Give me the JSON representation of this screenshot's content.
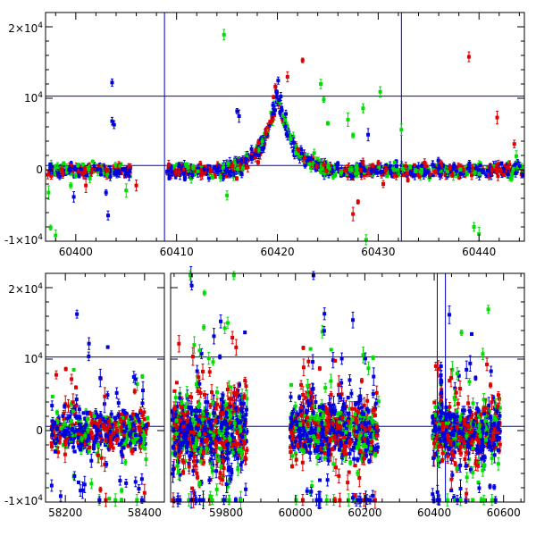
{
  "chart_data": [
    {
      "type": "scatter",
      "panel": "top",
      "title": "",
      "xlabel": "",
      "ylabel": "",
      "xlim": [
        60397,
        60444.5
      ],
      "ylim": [
        -10000,
        22000
      ],
      "x_ticks": [
        60400,
        60410,
        60420,
        60430,
        60440
      ],
      "x_tick_labels": [
        "60400",
        "60410",
        "60420",
        "60430",
        "60440"
      ],
      "y_ticks": [
        -10000,
        0,
        10000,
        20000
      ],
      "y_tick_labels": [
        {
          "mant": "-1×10",
          "exp": "4"
        },
        {
          "mant": "0",
          "exp": ""
        },
        {
          "mant": "10",
          "exp": "4"
        },
        {
          "mant": "2×10",
          "exp": "4"
        }
      ],
      "hlines": [
        10300,
        600
      ],
      "vlines": [
        60408.8,
        60432.3
      ],
      "line_color": "#0000cc",
      "series_colors": {
        "red": "#dd0000",
        "green": "#00dd00",
        "blue": "#0000dd"
      },
      "baseline_segments": [
        {
          "x0": 60397.2,
          "x1": 60405.5
        },
        {
          "x0": 60409.0,
          "x1": 60416.5
        },
        {
          "x0": 60424.5,
          "x1": 60444.5
        }
      ],
      "peak": {
        "x_center": 60420.0,
        "x_start": 60414.0,
        "x_end": 60425.5,
        "height": 11000,
        "width": 1.4
      },
      "outliers": [
        {
          "x": 60403.6,
          "y": 12200,
          "c": "blue"
        },
        {
          "x": 60403.6,
          "y": 6800,
          "c": "blue"
        },
        {
          "x": 60403.8,
          "y": 6300,
          "c": "blue"
        },
        {
          "x": 60403.0,
          "y": -3200,
          "c": "blue"
        },
        {
          "x": 60403.2,
          "y": -6400,
          "c": "blue"
        },
        {
          "x": 60397.3,
          "y": -3200,
          "c": "green"
        },
        {
          "x": 60397.5,
          "y": -8100,
          "c": "green"
        },
        {
          "x": 60398.0,
          "y": -9200,
          "c": "green"
        },
        {
          "x": 60399.5,
          "y": -2200,
          "c": "green"
        },
        {
          "x": 60399.8,
          "y": -3800,
          "c": "blue"
        },
        {
          "x": 60401.0,
          "y": -2200,
          "c": "red"
        },
        {
          "x": 60406.0,
          "y": -2200,
          "c": "red"
        },
        {
          "x": 60405.0,
          "y": -2900,
          "c": "green"
        },
        {
          "x": 60414.7,
          "y": 18900,
          "c": "green"
        },
        {
          "x": 60415.0,
          "y": -3600,
          "c": "green"
        },
        {
          "x": 60416.0,
          "y": 8200,
          "c": "blue"
        },
        {
          "x": 60416.2,
          "y": 7500,
          "c": "blue"
        },
        {
          "x": 60421.0,
          "y": 13000,
          "c": "red"
        },
        {
          "x": 60422.5,
          "y": 15300,
          "c": "red"
        },
        {
          "x": 60424.3,
          "y": 12000,
          "c": "green"
        },
        {
          "x": 60424.6,
          "y": 9800,
          "c": "green"
        },
        {
          "x": 60425.0,
          "y": 6500,
          "c": "green"
        },
        {
          "x": 60427.0,
          "y": 7000,
          "c": "green"
        },
        {
          "x": 60427.5,
          "y": 4800,
          "c": "green"
        },
        {
          "x": 60428.5,
          "y": 8600,
          "c": "green"
        },
        {
          "x": 60428.0,
          "y": -4500,
          "c": "red"
        },
        {
          "x": 60427.5,
          "y": -6200,
          "c": "red"
        },
        {
          "x": 60428.8,
          "y": -9800,
          "c": "green"
        },
        {
          "x": 60430.2,
          "y": 10900,
          "c": "green"
        },
        {
          "x": 60429.0,
          "y": 4900,
          "c": "blue"
        },
        {
          "x": 60432.3,
          "y": 5600,
          "c": "green"
        },
        {
          "x": 60430.5,
          "y": -2000,
          "c": "red"
        },
        {
          "x": 60439.0,
          "y": 15800,
          "c": "red"
        },
        {
          "x": 60441.8,
          "y": 7300,
          "c": "red"
        },
        {
          "x": 60443.5,
          "y": 3600,
          "c": "red"
        },
        {
          "x": 60439.5,
          "y": -8000,
          "c": "green"
        },
        {
          "x": 60440.0,
          "y": -9000,
          "c": "green"
        },
        {
          "x": 60443.7,
          "y": 1900,
          "c": "green"
        }
      ]
    },
    {
      "type": "scatter",
      "panel": "bottom",
      "title": "",
      "xlabel": "",
      "ylabel": "",
      "axis_break": true,
      "segments": [
        {
          "xlim": [
            58150,
            58450
          ],
          "x_ticks": [
            58200,
            58400
          ],
          "x_tick_labels": [
            "58200",
            "58400"
          ]
        },
        {
          "xlim": [
            59640,
            60660
          ],
          "x_ticks": [
            59800,
            60000,
            60200,
            60400,
            60600
          ],
          "x_tick_labels": [
            "59800",
            "60000",
            "60200",
            "60400",
            "60600"
          ]
        }
      ],
      "ylim": [
        -10000,
        22000
      ],
      "y_ticks": [
        -10000,
        0,
        10000,
        20000
      ],
      "y_tick_labels": [
        {
          "mant": "-1×10",
          "exp": "4"
        },
        {
          "mant": "0",
          "exp": ""
        },
        {
          "mant": "10",
          "exp": "4"
        },
        {
          "mant": "2×10",
          "exp": "4"
        }
      ],
      "hlines": [
        10300,
        600
      ],
      "vlines": [
        60408.8,
        60432.3
      ],
      "line_color": "#0000cc",
      "series_colors": {
        "red": "#dd0000",
        "green": "#00dd00",
        "blue": "#0000dd"
      },
      "clusters": [
        {
          "seg": 0,
          "x0": 58165,
          "x1": 58410,
          "n": 560,
          "spread": 3200
        },
        {
          "seg": 1,
          "x0": 59645,
          "x1": 59860,
          "n": 760,
          "spread": 5200
        },
        {
          "seg": 1,
          "x0": 59985,
          "x1": 60240,
          "n": 760,
          "spread": 4300
        },
        {
          "seg": 1,
          "x0": 60395,
          "x1": 60590,
          "n": 620,
          "spread": 3700
        }
      ]
    }
  ]
}
